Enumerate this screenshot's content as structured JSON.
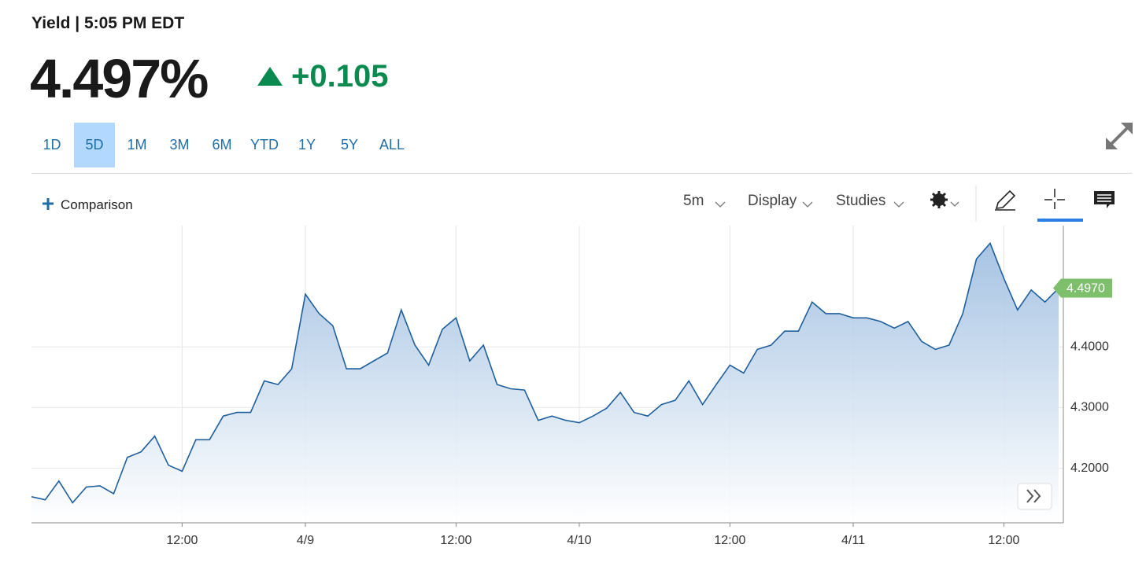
{
  "header": {
    "title": "Yield | 5:05 PM EDT",
    "price": "4.497%",
    "change": "+0.105"
  },
  "ranges": {
    "items": [
      "1D",
      "5D",
      "1M",
      "3M",
      "6M",
      "YTD",
      "1Y",
      "5Y",
      "ALL"
    ],
    "selected_index": 1
  },
  "toolbar": {
    "comparison": "Comparison",
    "interval": "5m",
    "display": "Display",
    "studies": "Studies"
  },
  "chart_data": {
    "type": "area",
    "color": "#1f5f9c",
    "categories": [
      null,
      null,
      null,
      null,
      null,
      null,
      null,
      null,
      null,
      null,
      null,
      "12:00",
      null,
      null,
      null,
      null,
      null,
      null,
      null,
      null,
      "4/9",
      null,
      null,
      null,
      null,
      null,
      null,
      null,
      null,
      null,
      null,
      "12:00",
      null,
      null,
      null,
      null,
      null,
      null,
      null,
      null,
      "4/10",
      null,
      null,
      null,
      null,
      null,
      null,
      null,
      null,
      null,
      null,
      "12:00",
      null,
      null,
      null,
      null,
      null,
      null,
      null,
      null,
      "4/11",
      null,
      null,
      null,
      null,
      null,
      null,
      null,
      null,
      null,
      null,
      "12:00",
      null,
      null,
      null,
      null
    ],
    "values": [
      4.153,
      4.148,
      4.179,
      4.143,
      4.169,
      4.171,
      4.158,
      4.218,
      4.227,
      4.253,
      4.205,
      4.195,
      4.247,
      4.247,
      4.286,
      4.292,
      4.292,
      4.344,
      4.338,
      4.364,
      4.487,
      4.455,
      4.435,
      4.364,
      4.364,
      4.377,
      4.39,
      4.461,
      4.403,
      4.37,
      4.429,
      4.448,
      4.377,
      4.403,
      4.338,
      4.331,
      4.329,
      4.279,
      4.286,
      4.279,
      4.275,
      4.286,
      4.299,
      4.325,
      4.292,
      4.286,
      4.305,
      4.312,
      4.344,
      4.305,
      4.338,
      4.37,
      4.357,
      4.396,
      4.403,
      4.426,
      4.426,
      4.474,
      4.455,
      4.455,
      4.448,
      4.448,
      4.442,
      4.431,
      4.442,
      4.409,
      4.396,
      4.403,
      4.455,
      4.545,
      4.571,
      4.513,
      4.461,
      4.494,
      4.474,
      4.497
    ],
    "current_label": "4.4970",
    "ylim": [
      4.11,
      4.6
    ],
    "yticks": [
      {
        "value": 4.2,
        "label": "4.2000"
      },
      {
        "value": 4.3,
        "label": "4.3000"
      },
      {
        "value": 4.4,
        "label": "4.4000"
      }
    ],
    "grid": true
  }
}
